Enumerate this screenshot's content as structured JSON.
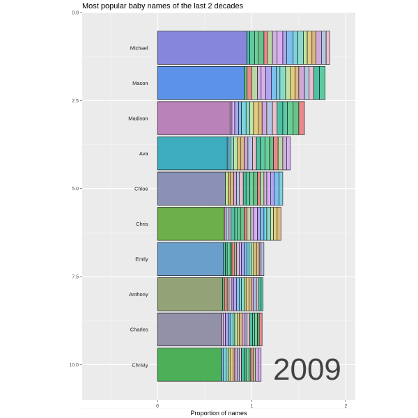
{
  "chart_data": {
    "type": "bar",
    "orientation": "horizontal",
    "title": "Most popular baby names of the last 2 decades",
    "xlabel": "Proportion of names",
    "ylabel": "",
    "xlim": [
      -0.8,
      2.1
    ],
    "ylim": [
      0,
      11
    ],
    "x_ticks": [
      0,
      1,
      2
    ],
    "y_ticks": [
      0.0,
      2.5,
      5.0,
      7.5,
      10.0
    ],
    "grid": true,
    "legend": "none",
    "overlay_text": "2009",
    "bars": [
      {
        "rank": 1,
        "label": "Michael",
        "color": "#7b7bd8",
        "base_value": 0.95,
        "stack_values": [
          0.03,
          0.05,
          0.04,
          0.06,
          0.04,
          0.05,
          0.05,
          0.06,
          0.04,
          0.07,
          0.05,
          0.06,
          0.04,
          0.05,
          0.04,
          0.06,
          0.05,
          0.04
        ]
      },
      {
        "rank": 2,
        "label": "Mason",
        "color": "#4d8ae8",
        "base_value": 0.92,
        "stack_values": [
          0.03,
          0.05,
          0.06,
          0.04,
          0.05,
          0.06,
          0.05,
          0.04,
          0.06,
          0.05,
          0.05,
          0.04,
          0.06,
          0.05,
          0.05,
          0.06,
          0.06
        ]
      },
      {
        "rank": 3,
        "label": "Madison",
        "color": "#b478b4",
        "base_value": 0.77,
        "stack_values": [
          0.02,
          0.03,
          0.04,
          0.03,
          0.05,
          0.04,
          0.04,
          0.05,
          0.04,
          0.05,
          0.06,
          0.05,
          0.06,
          0.05,
          0.06,
          0.06,
          0.06
        ]
      },
      {
        "rank": 4,
        "label": "Ava",
        "color": "#2aa6b8",
        "base_value": 0.74,
        "stack_values": [
          0.02,
          0.02,
          0.03,
          0.04,
          0.03,
          0.04,
          0.04,
          0.05,
          0.04,
          0.04,
          0.05,
          0.05,
          0.04,
          0.05,
          0.05,
          0.04,
          0.04
        ]
      },
      {
        "rank": 5,
        "label": "Chloe",
        "color": "#7f86b0",
        "base_value": 0.72,
        "stack_values": [
          0.03,
          0.02,
          0.04,
          0.03,
          0.03,
          0.04,
          0.03,
          0.04,
          0.04,
          0.04,
          0.03,
          0.04,
          0.03,
          0.04,
          0.04,
          0.05,
          0.04
        ]
      },
      {
        "rank": 6,
        "label": "Chris",
        "color": "#5fa83a",
        "base_value": 0.71,
        "stack_values": [
          0.02,
          0.03,
          0.02,
          0.04,
          0.03,
          0.03,
          0.04,
          0.03,
          0.04,
          0.03,
          0.04,
          0.03,
          0.04,
          0.03,
          0.04,
          0.03,
          0.04,
          0.04
        ]
      },
      {
        "rank": 7,
        "label": "Emily",
        "color": "#5d97c8",
        "base_value": 0.7,
        "stack_values": [
          0.02,
          0.02,
          0.03,
          0.02,
          0.03,
          0.02,
          0.03,
          0.02,
          0.03,
          0.03,
          0.02,
          0.03,
          0.02,
          0.03,
          0.03,
          0.02,
          0.03
        ]
      },
      {
        "rank": 8,
        "label": "Anthony",
        "color": "#8a9a6a",
        "base_value": 0.69,
        "stack_values": [
          0.02,
          0.03,
          0.02,
          0.03,
          0.02,
          0.03,
          0.03,
          0.02,
          0.03,
          0.02,
          0.03,
          0.03,
          0.02,
          0.03,
          0.02,
          0.03,
          0.02
        ]
      },
      {
        "rank": 9,
        "label": "Charles",
        "color": "#8887a0",
        "base_value": 0.68,
        "stack_values": [
          0.02,
          0.02,
          0.03,
          0.02,
          0.03,
          0.02,
          0.03,
          0.02,
          0.03,
          0.03,
          0.02,
          0.03,
          0.03,
          0.02,
          0.03,
          0.02,
          0.03
        ]
      },
      {
        "rank": 10,
        "label": "Christy",
        "color": "#3aaa48",
        "base_value": 0.68,
        "stack_values": [
          0.02,
          0.03,
          0.02,
          0.02,
          0.03,
          0.02,
          0.03,
          0.02,
          0.02,
          0.03,
          0.02,
          0.03,
          0.02,
          0.03,
          0.02,
          0.03,
          0.03
        ]
      }
    ],
    "stack_palette": [
      "#19b28c",
      "#2fbf8a",
      "#45c37f",
      "#3eb46a",
      "#e46a6a",
      "#a8d08d",
      "#c9a0dc",
      "#d29cf0",
      "#9c8ef0",
      "#5ab0f0",
      "#5cc8d8",
      "#6ad4c0",
      "#b3e08a",
      "#e0c060",
      "#d4a860",
      "#c890d0",
      "#a0b8e0",
      "#e8b0c0"
    ]
  }
}
